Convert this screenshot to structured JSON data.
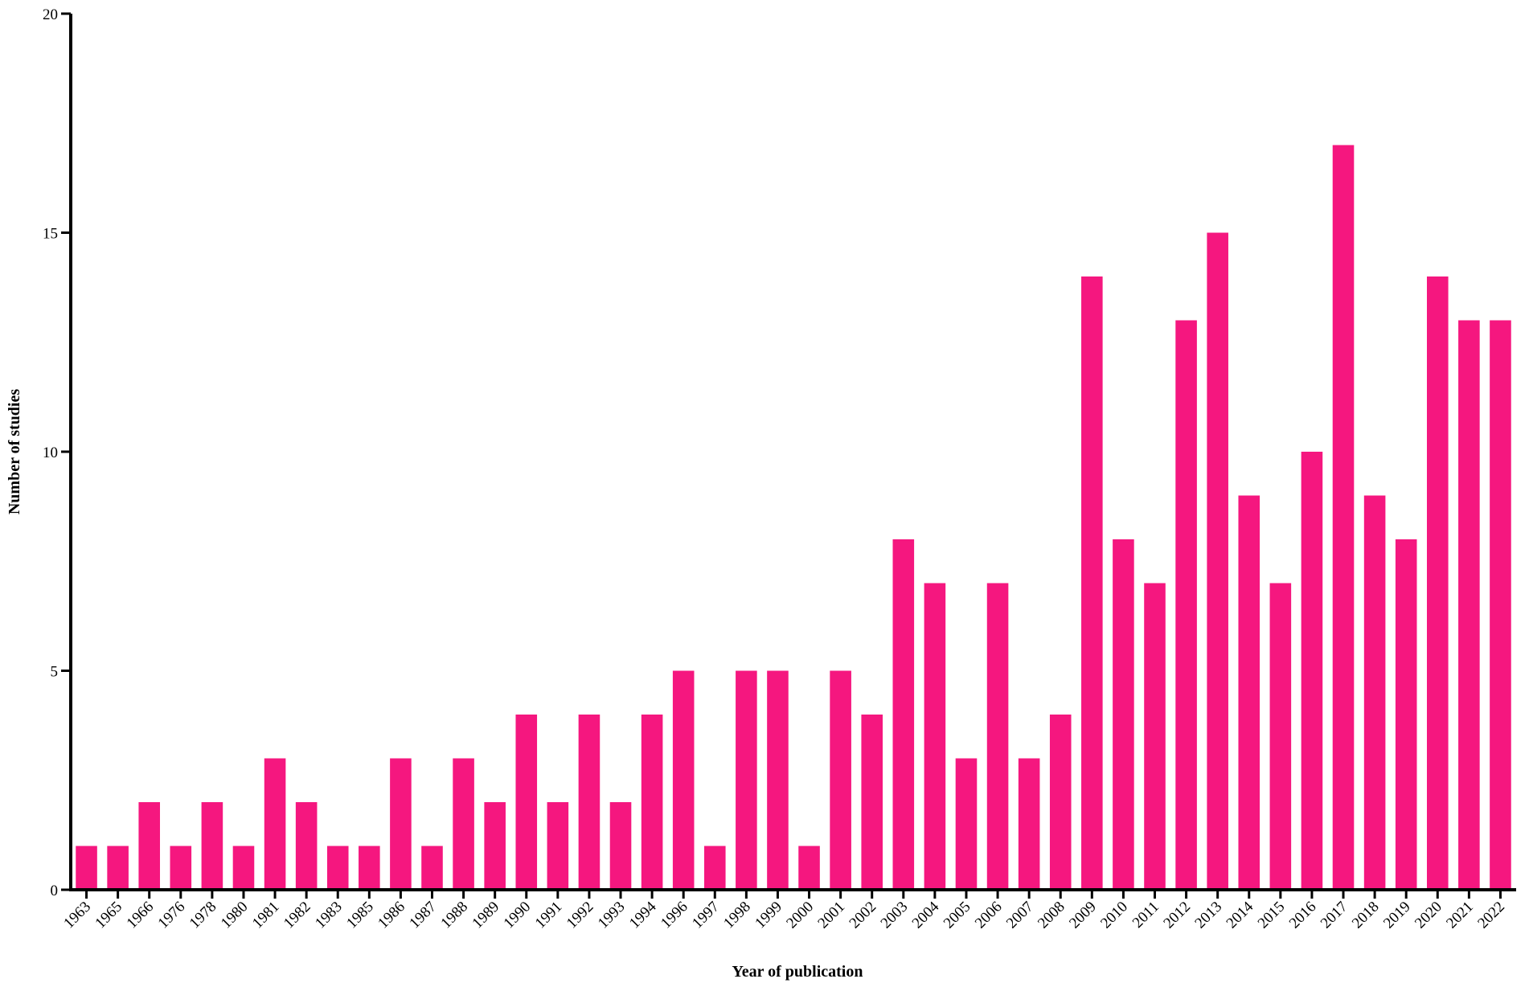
{
  "chart_data": {
    "type": "bar",
    "title": "",
    "xlabel": "Year of publication",
    "ylabel": "Number of studies",
    "ylim": [
      0,
      20
    ],
    "yticks": [
      "0",
      "5",
      "10",
      "15",
      "20"
    ],
    "grid": false,
    "bar_color": "#f5177f",
    "categories": [
      "1963",
      "1965",
      "1966",
      "1976",
      "1978",
      "1980",
      "1981",
      "1982",
      "1983",
      "1985",
      "1986",
      "1987",
      "1988",
      "1989",
      "1990",
      "1991",
      "1992",
      "1993",
      "1994",
      "1996",
      "1997",
      "1998",
      "1999",
      "2000",
      "2001",
      "2002",
      "2003",
      "2004",
      "2005",
      "2006",
      "2007",
      "2008",
      "2009",
      "2010",
      "2011",
      "2012",
      "2013",
      "2014",
      "2015",
      "2016",
      "2017",
      "2018",
      "2019",
      "2020",
      "2021",
      "2022"
    ],
    "values": [
      1,
      1,
      2,
      1,
      2,
      1,
      3,
      2,
      1,
      1,
      3,
      1,
      3,
      2,
      4,
      2,
      4,
      2,
      4,
      5,
      1,
      5,
      5,
      1,
      5,
      4,
      8,
      7,
      3,
      7,
      3,
      4,
      14,
      8,
      7,
      13,
      15,
      9,
      7,
      10,
      17,
      9,
      8,
      14,
      13,
      13
    ]
  }
}
